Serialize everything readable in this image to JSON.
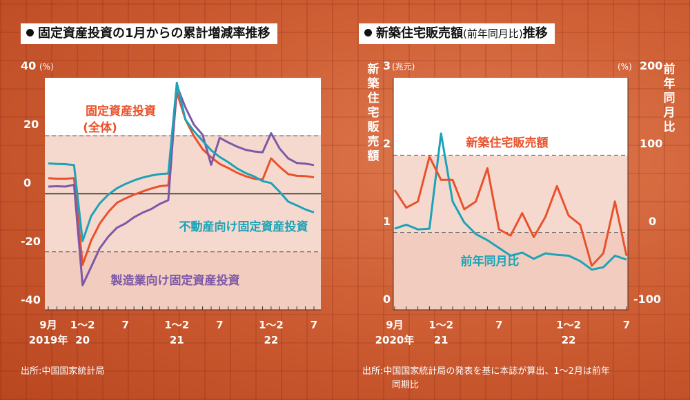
{
  "left": {
    "title": "固定資産投資の1月からの累計増減率推移",
    "unit": "(%)",
    "source": "出所:中国国家統計局",
    "labels": {
      "overall_line1": "固定資産投資",
      "overall_line2": "(全体)",
      "realestate": "不動産向け固定資産投資",
      "manufacturing": "製造業向け固定資産投資"
    },
    "colors": {
      "overall": "#e9512c",
      "realestate": "#1ba3b7",
      "manufacturing": "#7d58a6"
    }
  },
  "right": {
    "title": "新築住宅販売額",
    "title_paren": "(前年同月比)",
    "title_suffix": "推移",
    "left_axis_label": "新築住宅販売額",
    "right_axis_label": "前年同月比",
    "unit_left": "(兆元)",
    "unit_right": "(%)",
    "source_line1": "出所:中国国家統計局の発表を基に本誌が算出、1〜2月は前年",
    "source_line2": "同期比",
    "labels": {
      "sales": "新築住宅販売額",
      "yoy": "前年同月比"
    },
    "colors": {
      "sales": "#e9512c",
      "yoy": "#1ba3b7"
    }
  },
  "chart_data": [
    {
      "type": "line",
      "title": "固定資産投資の1月からの累計増減率推移",
      "ylabel": "(%)",
      "ylim": [
        -40,
        40
      ],
      "yticks": [
        "40",
        "20",
        "0",
        "-20",
        "-40"
      ],
      "x": [
        "2019-09",
        "2019-10",
        "2019-11",
        "2019-12",
        "2020-02",
        "2020-03",
        "2020-04",
        "2020-05",
        "2020-06",
        "2020-07",
        "2020-08",
        "2020-09",
        "2020-10",
        "2020-11",
        "2020-12",
        "2021-02",
        "2021-03",
        "2021-04",
        "2021-05",
        "2021-06",
        "2021-07",
        "2021-08",
        "2021-09",
        "2021-10",
        "2021-11",
        "2021-12",
        "2022-02",
        "2022-03",
        "2022-04",
        "2022-05",
        "2022-06",
        "2022-07"
      ],
      "xtick_labels": [
        {
          "index": 0,
          "line1": "9月",
          "line2": "2019年"
        },
        {
          "index": 4,
          "line1": "1〜2",
          "line2": "20"
        },
        {
          "index": 9,
          "line1": "7",
          "line2": ""
        },
        {
          "index": 15,
          "line1": "1〜2",
          "line2": "21"
        },
        {
          "index": 20,
          "line1": "7",
          "line2": ""
        },
        {
          "index": 26,
          "line1": "1〜2",
          "line2": "22"
        },
        {
          "index": 31,
          "line1": "7",
          "line2": ""
        }
      ],
      "series": [
        {
          "name": "固定資産投資(全体)",
          "values": [
            5.4,
            5.2,
            5.2,
            5.4,
            -24.5,
            -16.1,
            -10.3,
            -6.3,
            -3.1,
            -1.6,
            -0.3,
            0.8,
            1.8,
            2.6,
            2.9,
            35.0,
            25.6,
            19.9,
            15.4,
            12.6,
            10.3,
            8.9,
            7.3,
            6.1,
            5.2,
            4.9,
            12.2,
            9.3,
            6.8,
            6.2,
            6.1,
            5.7
          ]
        },
        {
          "name": "不動産向け固定資産投資",
          "values": [
            10.5,
            10.3,
            10.2,
            9.9,
            -16.3,
            -7.7,
            -3.3,
            -0.3,
            1.9,
            3.4,
            4.6,
            5.6,
            6.3,
            6.8,
            7.0,
            38.3,
            25.6,
            21.6,
            18.3,
            15.0,
            12.7,
            10.9,
            8.8,
            7.2,
            6.0,
            4.4,
            3.7,
            0.7,
            -2.7,
            -4.0,
            -5.4,
            -6.4
          ]
        },
        {
          "name": "製造業向け固定資産投資",
          "values": [
            2.5,
            2.6,
            2.5,
            3.1,
            -31.5,
            -25.2,
            -18.8,
            -14.8,
            -11.7,
            -10.2,
            -8.1,
            -6.5,
            -5.3,
            -3.5,
            -2.2,
            37.3,
            29.8,
            23.8,
            20.4,
            10.0,
            19.3,
            17.7,
            16.3,
            15.2,
            14.6,
            14.3,
            20.9,
            15.6,
            12.2,
            10.6,
            10.4,
            9.9
          ]
        }
      ]
    },
    {
      "type": "line",
      "title": "新築住宅販売額(前年同月比)推移",
      "ylabel": "(兆元)",
      "ylim": [
        0,
        3
      ],
      "yticks": [
        "3",
        "2",
        "1",
        "0"
      ],
      "y2label": "(%)",
      "y2lim": [
        -100,
        200
      ],
      "y2ticks": [
        "200",
        "100",
        "0",
        "-100"
      ],
      "x": [
        "2020-09",
        "2020-10",
        "2020-11",
        "2020-12",
        "2021-02",
        "2021-03",
        "2021-04",
        "2021-05",
        "2021-06",
        "2021-07",
        "2021-08",
        "2021-09",
        "2021-10",
        "2021-11",
        "2021-12",
        "2022-02",
        "2022-03",
        "2022-04",
        "2022-05",
        "2022-06",
        "2022-07"
      ],
      "xtick_labels": [
        {
          "index": 0,
          "line1": "9月",
          "line2": "2020年"
        },
        {
          "index": 4,
          "line1": "1〜2",
          "line2": "21"
        },
        {
          "index": 9,
          "line1": "7",
          "line2": ""
        },
        {
          "index": 15,
          "line1": "1〜2",
          "line2": "22"
        },
        {
          "index": 20,
          "line1": "7",
          "line2": ""
        }
      ],
      "series": [
        {
          "name": "新築住宅販売額",
          "axis": "left",
          "values": [
            1.55,
            1.32,
            1.4,
            1.98,
            1.68,
            1.68,
            1.3,
            1.4,
            1.83,
            1.04,
            0.96,
            1.25,
            0.94,
            1.2,
            1.6,
            1.22,
            1.1,
            0.57,
            0.73,
            1.4,
            0.7
          ]
        },
        {
          "name": "前年同月比",
          "axis": "right",
          "values": [
            5,
            10,
            4,
            5,
            128,
            40,
            13,
            -2,
            -10,
            -20,
            -30,
            -26,
            -34,
            -27,
            -29,
            -30,
            -37,
            -48,
            -45,
            -30,
            -35
          ]
        }
      ]
    }
  ]
}
